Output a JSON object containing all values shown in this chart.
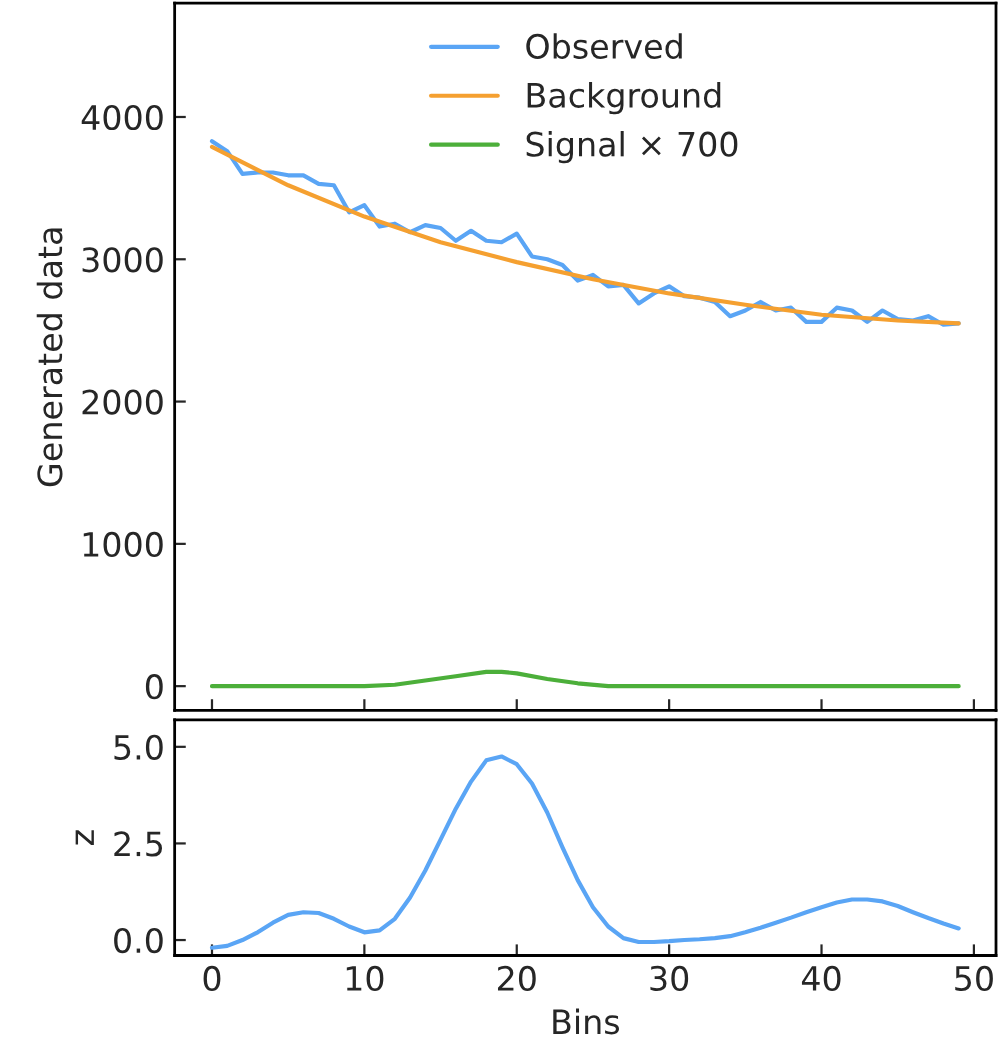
{
  "chart_data": [
    {
      "type": "line",
      "ylabel": "Generated data",
      "xlim": [
        -2.45,
        51.45
      ],
      "xticks": [
        {
          "value": 0,
          "label": null
        },
        {
          "value": 10,
          "label": null
        },
        {
          "value": 20,
          "label": null
        },
        {
          "value": 30,
          "label": null
        },
        {
          "value": 40,
          "label": null
        },
        {
          "value": 50,
          "label": null
        }
      ],
      "ylim": [
        -170,
        4800
      ],
      "yticks": [
        0,
        1000,
        2000,
        3000,
        4000
      ],
      "tick_labels": "y",
      "grid": false,
      "legend": "top",
      "marker": "none",
      "line_style": "solid",
      "series": [
        {
          "name": "Observed",
          "color": "#5aa5f5",
          "x": [
            0,
            1,
            2,
            3,
            4,
            5,
            6,
            7,
            8,
            9,
            10,
            11,
            12,
            13,
            14,
            15,
            16,
            17,
            18,
            19,
            20,
            21,
            22,
            23,
            24,
            25,
            26,
            27,
            28,
            29,
            30,
            31,
            32,
            33,
            34,
            35,
            36,
            37,
            38,
            39,
            40,
            41,
            42,
            43,
            44,
            45,
            46,
            47,
            48,
            49
          ],
          "values": [
            3830,
            3760,
            3600,
            3610,
            3610,
            3590,
            3590,
            3530,
            3520,
            3330,
            3380,
            3230,
            3250,
            3190,
            3240,
            3220,
            3130,
            3200,
            3130,
            3120,
            3180,
            3020,
            3000,
            2960,
            2850,
            2890,
            2810,
            2820,
            2690,
            2760,
            2810,
            2740,
            2730,
            2700,
            2600,
            2640,
            2700,
            2640,
            2660,
            2560,
            2560,
            2660,
            2640,
            2560,
            2640,
            2580,
            2570,
            2600,
            2540,
            2550
          ]
        },
        {
          "name": "Background",
          "color": "#f5a030",
          "x": [
            0,
            5,
            10,
            15,
            20,
            25,
            30,
            35,
            40,
            45,
            49
          ],
          "values": [
            3790,
            3520,
            3300,
            3120,
            2980,
            2860,
            2760,
            2680,
            2610,
            2570,
            2550
          ]
        },
        {
          "name": "Signal × 700",
          "color": "#4caf3a",
          "x": [
            0,
            10,
            12,
            14,
            16,
            18,
            19,
            20,
            22,
            24,
            26,
            28,
            49
          ],
          "values": [
            0,
            0,
            10,
            40,
            70,
            100,
            100,
            90,
            50,
            20,
            0,
            0,
            0
          ]
        }
      ]
    },
    {
      "type": "line",
      "xlabel": "Bins",
      "ylabel": "z",
      "xlim": [
        -2.45,
        51.45
      ],
      "xticks": [
        0,
        10,
        20,
        30,
        40,
        50
      ],
      "ylim": [
        -0.4,
        5.7
      ],
      "yticks": [
        {
          "value": 0,
          "label": "0.0"
        },
        {
          "value": 2.5,
          "label": "2.5"
        },
        {
          "value": 5,
          "label": "5.0"
        }
      ],
      "grid": false,
      "legend": false,
      "marker": "none",
      "line_style": "solid",
      "series": [
        {
          "color": "#5aa5f5",
          "x": [
            0,
            1,
            2,
            3,
            4,
            5,
            6,
            7,
            8,
            9,
            10,
            11,
            12,
            13,
            14,
            15,
            16,
            17,
            18,
            19,
            20,
            21,
            22,
            23,
            24,
            25,
            26,
            27,
            28,
            29,
            30,
            31,
            32,
            33,
            34,
            35,
            36,
            37,
            38,
            39,
            40,
            41,
            42,
            43,
            44,
            45,
            46,
            47,
            48,
            49
          ],
          "values": [
            -0.2,
            -0.15,
            0,
            0.2,
            0.45,
            0.65,
            0.72,
            0.7,
            0.55,
            0.35,
            0.2,
            0.25,
            0.55,
            1.1,
            1.8,
            2.6,
            3.4,
            4.1,
            4.65,
            4.75,
            4.55,
            4.05,
            3.3,
            2.4,
            1.55,
            0.85,
            0.35,
            0.05,
            -0.05,
            -0.05,
            -0.03,
            0,
            0.02,
            0.05,
            0.1,
            0.2,
            0.32,
            0.45,
            0.58,
            0.72,
            0.85,
            0.97,
            1.05,
            1.05,
            1.0,
            0.88,
            0.72,
            0.57,
            0.43,
            0.3
          ]
        }
      ]
    }
  ]
}
